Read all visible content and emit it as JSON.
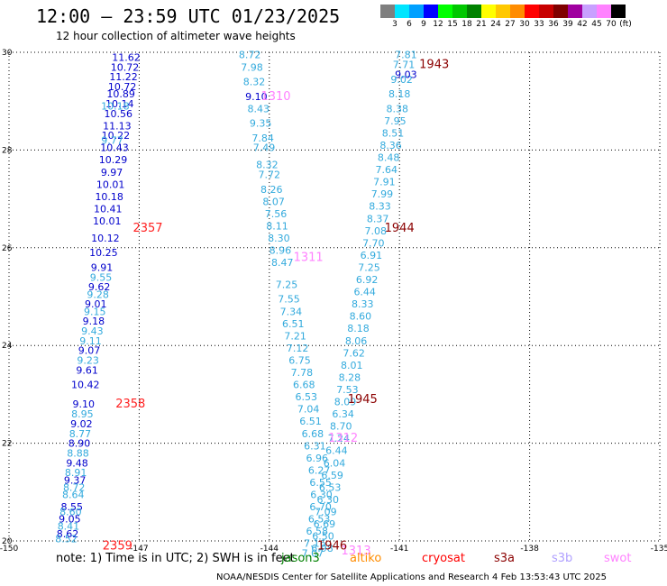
{
  "header": {
    "title": "12:00 – 23:59 UTC 01/23/2025",
    "subtitle": "12 hour collection of altimeter wave heights"
  },
  "legend": {
    "colors": [
      "#7f7f7f",
      "#00e5ff",
      "#00a0ff",
      "#0000ff",
      "#00ff00",
      "#00c800",
      "#008200",
      "#ffff00",
      "#ffc800",
      "#ff8c00",
      "#ff0000",
      "#c80000",
      "#7f0000",
      "#a000a0",
      "#c8a0ff",
      "#ff82ff",
      "#000000"
    ],
    "ticks": [
      "3",
      "6",
      "9",
      "12",
      "15",
      "18",
      "21",
      "24",
      "27",
      "30",
      "33",
      "36",
      "39",
      "42",
      "45",
      "70",
      "(ft)"
    ]
  },
  "footer": {
    "note": "note:  1) Time is in UTC;  2) SWH is in feet",
    "missions": [
      {
        "name": "jason3",
        "color": "#008000"
      },
      {
        "name": "altiko",
        "color": "#ff8c00"
      },
      {
        "name": "cryosat",
        "color": "#ff0000"
      },
      {
        "name": "s3a",
        "color": "#8b0000"
      },
      {
        "name": "s3b",
        "color": "#b0a0ff"
      },
      {
        "name": "swot",
        "color": "#ff82ff"
      }
    ],
    "credit": "NOAA/NESDIS Center for Satellite Applications and Research     4 Feb 13:53:43 UTC 2025"
  },
  "chart_data": {
    "type": "scatter",
    "title": "12:00 – 23:59 UTC 01/23/2025",
    "subtitle": "12 hour collection of altimeter wave heights",
    "xlim": [
      -150,
      -135
    ],
    "ylim": [
      20,
      30
    ],
    "xticks": [
      "-150",
      "-147",
      "-144",
      "-141",
      "-138",
      "-135"
    ],
    "yticks": [
      "20",
      "22",
      "24",
      "26",
      "28",
      "30"
    ],
    "grid": true,
    "series": [
      {
        "color": "#0000cc",
        "points": [
          {
            "x": -147.3,
            "y": 29.9,
            "v": "11.62"
          },
          {
            "x": -147.33,
            "y": 29.7,
            "v": "10.72"
          },
          {
            "x": -147.36,
            "y": 29.5,
            "v": "11.22"
          },
          {
            "x": -147.39,
            "y": 29.3,
            "v": "10.72"
          },
          {
            "x": -147.42,
            "y": 29.15,
            "v": "10.89"
          },
          {
            "x": -147.45,
            "y": 28.95,
            "v": "10.14"
          },
          {
            "x": -147.48,
            "y": 28.75,
            "v": "10.56"
          },
          {
            "x": -147.51,
            "y": 28.5,
            "v": "11.13"
          },
          {
            "x": -147.54,
            "y": 28.3,
            "v": "10.22"
          },
          {
            "x": -147.57,
            "y": 28.05,
            "v": "10.43"
          },
          {
            "x": -147.6,
            "y": 27.8,
            "v": "10.29"
          },
          {
            "x": -147.63,
            "y": 27.55,
            "v": "9.97"
          },
          {
            "x": -147.66,
            "y": 27.3,
            "v": "10.01"
          },
          {
            "x": -147.69,
            "y": 27.05,
            "v": "10.18"
          },
          {
            "x": -147.72,
            "y": 26.8,
            "v": "10.41"
          },
          {
            "x": -147.74,
            "y": 26.55,
            "v": "10.01"
          },
          {
            "x": -147.78,
            "y": 26.2,
            "v": "10.12"
          },
          {
            "x": -147.82,
            "y": 25.9,
            "v": "10.25"
          },
          {
            "x": -147.86,
            "y": 25.6,
            "v": "9.91"
          },
          {
            "x": -147.92,
            "y": 25.2,
            "v": "9.62"
          },
          {
            "x": -148.0,
            "y": 24.85,
            "v": "9.01"
          },
          {
            "x": -148.05,
            "y": 24.5,
            "v": "9.18"
          },
          {
            "x": -148.15,
            "y": 23.9,
            "v": "9.07"
          },
          {
            "x": -148.2,
            "y": 23.5,
            "v": "9.61"
          },
          {
            "x": -148.24,
            "y": 23.2,
            "v": "10.42"
          },
          {
            "x": -148.28,
            "y": 22.8,
            "v": "9.10"
          },
          {
            "x": -148.33,
            "y": 22.4,
            "v": "9.02"
          },
          {
            "x": -148.38,
            "y": 22.0,
            "v": "8.90"
          },
          {
            "x": -148.43,
            "y": 21.6,
            "v": "9.48"
          },
          {
            "x": -148.48,
            "y": 21.25,
            "v": "9.37"
          },
          {
            "x": -148.55,
            "y": 20.7,
            "v": "8.55"
          },
          {
            "x": -148.6,
            "y": 20.45,
            "v": "9.05"
          },
          {
            "x": -148.65,
            "y": 20.15,
            "v": "8.62"
          }
        ]
      },
      {
        "color": "#33aadd",
        "points": [
          {
            "x": -147.55,
            "y": 28.9,
            "v": "10.18"
          },
          {
            "x": -147.62,
            "y": 28.2,
            "v": "9.77"
          },
          {
            "x": -147.88,
            "y": 25.4,
            "v": "9.55"
          },
          {
            "x": -147.95,
            "y": 25.05,
            "v": "9.28"
          },
          {
            "x": -148.02,
            "y": 24.7,
            "v": "9.15"
          },
          {
            "x": -148.08,
            "y": 24.3,
            "v": "9.43"
          },
          {
            "x": -148.12,
            "y": 24.1,
            "v": "9.11"
          },
          {
            "x": -148.18,
            "y": 23.7,
            "v": "9.23"
          },
          {
            "x": -148.31,
            "y": 22.6,
            "v": "8.95"
          },
          {
            "x": -148.36,
            "y": 22.2,
            "v": "8.77"
          },
          {
            "x": -148.41,
            "y": 21.8,
            "v": "8.88"
          },
          {
            "x": -148.46,
            "y": 21.4,
            "v": "8.91"
          },
          {
            "x": -148.5,
            "y": 21.1,
            "v": "8.72"
          },
          {
            "x": -148.52,
            "y": 20.95,
            "v": "8.64"
          },
          {
            "x": -148.58,
            "y": 20.6,
            "v": "8.60"
          },
          {
            "x": -148.63,
            "y": 20.3,
            "v": "8.41"
          },
          {
            "x": -148.68,
            "y": 20.05,
            "v": "8.52"
          }
        ]
      },
      {
        "color": "#33aadd",
        "points": [
          {
            "x": -144.45,
            "y": 29.95,
            "v": "8.72"
          },
          {
            "x": -144.4,
            "y": 29.7,
            "v": "7.98"
          },
          {
            "x": -144.35,
            "y": 29.4,
            "v": "8.32"
          },
          {
            "x": -144.25,
            "y": 28.85,
            "v": "8.43"
          },
          {
            "x": -144.2,
            "y": 28.55,
            "v": "9.35"
          },
          {
            "x": -144.15,
            "y": 28.25,
            "v": "7.84"
          },
          {
            "x": -144.12,
            "y": 28.05,
            "v": "7.49"
          },
          {
            "x": -144.05,
            "y": 27.7,
            "v": "8.32"
          },
          {
            "x": -144.0,
            "y": 27.5,
            "v": "7.72"
          },
          {
            "x": -143.95,
            "y": 27.2,
            "v": "8.26"
          },
          {
            "x": -143.9,
            "y": 26.95,
            "v": "8.07"
          },
          {
            "x": -143.85,
            "y": 26.7,
            "v": "7.56"
          },
          {
            "x": -143.82,
            "y": 26.45,
            "v": "8.11"
          },
          {
            "x": -143.78,
            "y": 26.2,
            "v": "8.30"
          },
          {
            "x": -143.75,
            "y": 25.95,
            "v": "8.96"
          },
          {
            "x": -143.7,
            "y": 25.7,
            "v": "8.47"
          },
          {
            "x": -143.6,
            "y": 25.25,
            "v": "7.25"
          },
          {
            "x": -143.55,
            "y": 24.95,
            "v": "7.55"
          },
          {
            "x": -143.5,
            "y": 24.7,
            "v": "7.34"
          },
          {
            "x": -143.45,
            "y": 24.45,
            "v": "6.51"
          },
          {
            "x": -143.4,
            "y": 24.2,
            "v": "7.21"
          },
          {
            "x": -143.35,
            "y": 23.95,
            "v": "7.12"
          },
          {
            "x": -143.3,
            "y": 23.7,
            "v": "6.75"
          },
          {
            "x": -143.25,
            "y": 23.45,
            "v": "7.78"
          },
          {
            "x": -143.2,
            "y": 23.2,
            "v": "6.68"
          },
          {
            "x": -143.15,
            "y": 22.95,
            "v": "6.53"
          },
          {
            "x": -143.1,
            "y": 22.7,
            "v": "7.04"
          },
          {
            "x": -143.05,
            "y": 22.45,
            "v": "6.51"
          },
          {
            "x": -143.0,
            "y": 22.2,
            "v": "6.68"
          },
          {
            "x": -142.95,
            "y": 21.95,
            "v": "6.31"
          },
          {
            "x": -142.9,
            "y": 21.7,
            "v": "6.96"
          },
          {
            "x": -142.85,
            "y": 21.45,
            "v": "6.27"
          },
          {
            "x": -142.82,
            "y": 21.2,
            "v": "6.55"
          },
          {
            "x": -142.8,
            "y": 20.95,
            "v": "6.30"
          },
          {
            "x": -142.82,
            "y": 20.7,
            "v": "6.70"
          },
          {
            "x": -142.85,
            "y": 20.45,
            "v": "6.53"
          },
          {
            "x": -142.9,
            "y": 20.2,
            "v": "6.58"
          },
          {
            "x": -142.95,
            "y": 19.95,
            "v": "7.16"
          },
          {
            "x": -143.0,
            "y": 19.75,
            "v": "7.07"
          }
        ]
      },
      {
        "color": "#0000cc",
        "points": [
          {
            "x": -144.3,
            "y": 29.1,
            "v": "9.10"
          }
        ]
      },
      {
        "color": "#33aadd",
        "points": [
          {
            "x": -140.85,
            "y": 29.95,
            "v": "7.81"
          },
          {
            "x": -140.9,
            "y": 29.75,
            "v": "7.71"
          },
          {
            "x": -140.95,
            "y": 29.45,
            "v": "9.02"
          },
          {
            "x": -141.0,
            "y": 29.15,
            "v": "8.18"
          },
          {
            "x": -141.05,
            "y": 28.85,
            "v": "8.38"
          },
          {
            "x": -141.1,
            "y": 28.6,
            "v": "7.95"
          },
          {
            "x": -141.15,
            "y": 28.35,
            "v": "8.51"
          },
          {
            "x": -141.2,
            "y": 28.1,
            "v": "8.36"
          },
          {
            "x": -141.25,
            "y": 27.85,
            "v": "8.48"
          },
          {
            "x": -141.3,
            "y": 27.6,
            "v": "7.64"
          },
          {
            "x": -141.35,
            "y": 27.35,
            "v": "7.91"
          },
          {
            "x": -141.4,
            "y": 27.1,
            "v": "7.99"
          },
          {
            "x": -141.45,
            "y": 26.85,
            "v": "8.33"
          },
          {
            "x": -141.5,
            "y": 26.6,
            "v": "8.37"
          },
          {
            "x": -141.55,
            "y": 26.35,
            "v": "7.08"
          },
          {
            "x": -141.6,
            "y": 26.1,
            "v": "7.70"
          },
          {
            "x": -141.65,
            "y": 25.85,
            "v": "6.91"
          },
          {
            "x": -141.7,
            "y": 25.6,
            "v": "7.25"
          },
          {
            "x": -141.75,
            "y": 25.35,
            "v": "6.92"
          },
          {
            "x": -141.8,
            "y": 25.1,
            "v": "6.44"
          },
          {
            "x": -141.85,
            "y": 24.85,
            "v": "8.33"
          },
          {
            "x": -141.9,
            "y": 24.6,
            "v": "8.60"
          },
          {
            "x": -141.95,
            "y": 24.35,
            "v": "8.18"
          },
          {
            "x": -142.0,
            "y": 24.1,
            "v": "8.06"
          },
          {
            "x": -142.05,
            "y": 23.85,
            "v": "7.62"
          },
          {
            "x": -142.1,
            "y": 23.6,
            "v": "8.01"
          },
          {
            "x": -142.15,
            "y": 23.35,
            "v": "8.28"
          },
          {
            "x": -142.2,
            "y": 23.1,
            "v": "7.53"
          },
          {
            "x": -142.25,
            "y": 22.85,
            "v": "8.09"
          },
          {
            "x": -142.3,
            "y": 22.6,
            "v": "6.34"
          },
          {
            "x": -142.35,
            "y": 22.35,
            "v": "8.70"
          },
          {
            "x": -142.4,
            "y": 22.1,
            "v": "7.24"
          },
          {
            "x": -142.45,
            "y": 21.85,
            "v": "6.44"
          },
          {
            "x": -142.5,
            "y": 21.6,
            "v": "6.04"
          },
          {
            "x": -142.55,
            "y": 21.35,
            "v": "6.59"
          },
          {
            "x": -142.6,
            "y": 21.1,
            "v": "6.53"
          },
          {
            "x": -142.65,
            "y": 20.85,
            "v": "6.30"
          },
          {
            "x": -142.7,
            "y": 20.6,
            "v": "7.09"
          },
          {
            "x": -142.73,
            "y": 20.35,
            "v": "6.69"
          },
          {
            "x": -142.76,
            "y": 20.1,
            "v": "6.50"
          },
          {
            "x": -142.78,
            "y": 19.85,
            "v": "6.98"
          }
        ]
      },
      {
        "color": "#0000cc",
        "points": [
          {
            "x": -140.85,
            "y": 29.55,
            "v": "9.03"
          }
        ]
      }
    ],
    "time_labels": [
      {
        "x": -146.8,
        "y": 26.4,
        "v": "2357",
        "color": "#ff2020"
      },
      {
        "x": -147.2,
        "y": 22.8,
        "v": "2358",
        "color": "#ff2020"
      },
      {
        "x": -147.5,
        "y": 19.9,
        "v": "2359",
        "color": "#ff2020"
      },
      {
        "x": -143.85,
        "y": 29.1,
        "v": "1310",
        "color": "#ff82ff"
      },
      {
        "x": -143.1,
        "y": 25.8,
        "v": "1311",
        "color": "#ff82ff"
      },
      {
        "x": -142.3,
        "y": 22.1,
        "v": "1312",
        "color": "#ff82ff"
      },
      {
        "x": -142.0,
        "y": 19.8,
        "v": "1313",
        "color": "#ff82ff"
      },
      {
        "x": -140.2,
        "y": 29.75,
        "v": "1943",
        "color": "#8b0000"
      },
      {
        "x": -141.0,
        "y": 26.4,
        "v": "1944",
        "color": "#8b0000"
      },
      {
        "x": -141.85,
        "y": 22.9,
        "v": "1945",
        "color": "#8b0000"
      },
      {
        "x": -142.55,
        "y": 19.9,
        "v": "1946",
        "color": "#8b0000"
      }
    ]
  }
}
